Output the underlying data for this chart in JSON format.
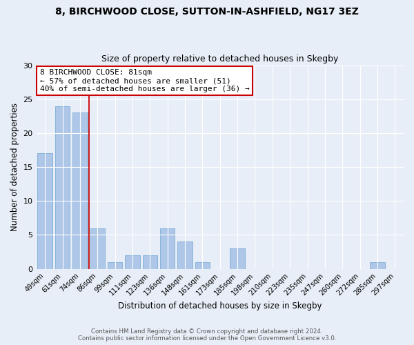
{
  "title1": "8, BIRCHWOOD CLOSE, SUTTON-IN-ASHFIELD, NG17 3EZ",
  "title2": "Size of property relative to detached houses in Skegby",
  "xlabel": "Distribution of detached houses by size in Skegby",
  "ylabel": "Number of detached properties",
  "footer1": "Contains HM Land Registry data © Crown copyright and database right 2024.",
  "footer2": "Contains public sector information licensed under the Open Government Licence v3.0.",
  "bar_labels": [
    "49sqm",
    "61sqm",
    "74sqm",
    "86sqm",
    "99sqm",
    "111sqm",
    "123sqm",
    "136sqm",
    "148sqm",
    "161sqm",
    "173sqm",
    "185sqm",
    "198sqm",
    "210sqm",
    "223sqm",
    "235sqm",
    "247sqm",
    "260sqm",
    "272sqm",
    "285sqm",
    "297sqm"
  ],
  "bar_values": [
    17,
    24,
    23,
    6,
    1,
    2,
    2,
    6,
    4,
    1,
    0,
    3,
    0,
    0,
    0,
    0,
    0,
    0,
    0,
    1,
    0
  ],
  "bar_color": "#aec6e8",
  "bar_edge_color": "#7aadd4",
  "vline_x": 2.5,
  "vline_color": "#cc0000",
  "annotation_title": "8 BIRCHWOOD CLOSE: 81sqm",
  "annotation_line1": "← 57% of detached houses are smaller (51)",
  "annotation_line2": "40% of semi-detached houses are larger (36) →",
  "annotation_box_color": "#cc0000",
  "ylim": [
    0,
    30
  ],
  "yticks": [
    0,
    5,
    10,
    15,
    20,
    25,
    30
  ],
  "bg_color": "#e8eef7",
  "plot_bg_color": "#e8eef7"
}
